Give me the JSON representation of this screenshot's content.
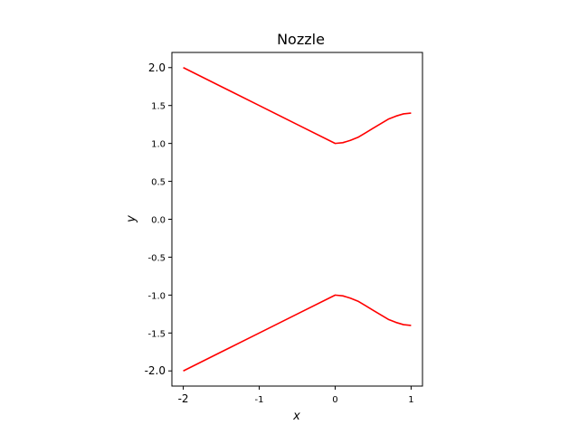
{
  "chart_data": {
    "type": "line",
    "title": "Nozzle",
    "xlabel": "x",
    "ylabel": "y",
    "xlim": [
      -2.15,
      1.15
    ],
    "ylim": [
      -2.2,
      2.2
    ],
    "aspect": "equal",
    "grid": false,
    "legend": "none",
    "x_ticks": [
      {
        "value": -2,
        "label": "-2"
      },
      {
        "value": -1,
        "label": "-1"
      },
      {
        "value": 0,
        "label": "0"
      },
      {
        "value": 1,
        "label": "1"
      }
    ],
    "y_ticks": [
      {
        "value": 2.0,
        "label": "2.0"
      },
      {
        "value": 1.5,
        "label": "1.5"
      },
      {
        "value": 1.0,
        "label": "1.0"
      },
      {
        "value": 0.5,
        "label": "0.5"
      },
      {
        "value": 0.0,
        "label": "0.0"
      },
      {
        "value": -0.5,
        "label": "-0.5"
      },
      {
        "value": -1.0,
        "label": "-1.0"
      },
      {
        "value": -1.5,
        "label": "-1.5"
      },
      {
        "value": -2.0,
        "label": "-2.0"
      }
    ],
    "series": [
      {
        "color": "#ff0000",
        "x": [
          -2,
          -1.5,
          -1,
          -0.5,
          0,
          0.1,
          0.2,
          0.3,
          0.4,
          0.5,
          0.6,
          0.7,
          0.8,
          0.9,
          1.0
        ],
        "y": [
          2.0,
          1.75,
          1.5,
          1.25,
          1.0,
          1.01,
          1.04,
          1.08,
          1.14,
          1.2,
          1.26,
          1.32,
          1.36,
          1.39,
          1.4
        ]
      },
      {
        "color": "#ff0000",
        "x": [
          -2,
          -1.5,
          -1,
          -0.5,
          0,
          0.1,
          0.2,
          0.3,
          0.4,
          0.5,
          0.6,
          0.7,
          0.8,
          0.9,
          1.0
        ],
        "y": [
          -2.0,
          -1.75,
          -1.5,
          -1.25,
          -1.0,
          -1.01,
          -1.04,
          -1.08,
          -1.14,
          -1.2,
          -1.26,
          -1.32,
          -1.36,
          -1.39,
          -1.4
        ]
      }
    ]
  }
}
